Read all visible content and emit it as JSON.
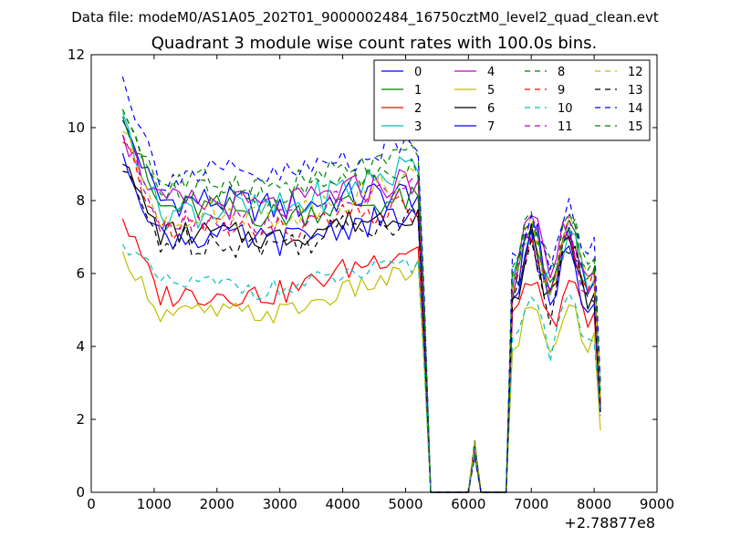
{
  "header": {
    "data_file": "Data file: modeM0/AS1A05_202T01_9000002484_16750cztM0_level2_quad_clean.evt"
  },
  "chart_data": {
    "type": "line",
    "title": "Quadrant 3 module wise count rates with 100.0s bins.",
    "xlabel": "",
    "ylabel": "",
    "x_offset_label": "+2.78877e8",
    "xlim": [
      0,
      9000
    ],
    "ylim": [
      0,
      12
    ],
    "x_ticks": [
      0,
      1000,
      2000,
      3000,
      4000,
      5000,
      6000,
      7000,
      8000,
      9000
    ],
    "y_ticks": [
      0,
      2,
      4,
      6,
      8,
      10,
      12
    ],
    "legend_position": "top-right",
    "x": [
      500,
      600,
      700,
      800,
      900,
      1000,
      1100,
      1200,
      1300,
      1400,
      1500,
      1600,
      1700,
      1800,
      1900,
      2000,
      2100,
      2200,
      2300,
      2400,
      2500,
      2600,
      2700,
      2800,
      2900,
      3000,
      3100,
      3200,
      3300,
      3400,
      3500,
      3600,
      3700,
      3800,
      3900,
      4000,
      4100,
      4200,
      4300,
      4400,
      4500,
      4600,
      4700,
      4800,
      4900,
      5000,
      5100,
      5200,
      5300,
      5400,
      5500,
      5600,
      5700,
      5800,
      5900,
      6000,
      6100,
      6200,
      6300,
      6400,
      6500,
      6600,
      6700,
      6800,
      6900,
      7000,
      7100,
      7200,
      7300,
      7400,
      7500,
      7600,
      7700,
      7800,
      7900,
      8000,
      8100
    ],
    "series": [
      {
        "name": "0",
        "color": "#0000ff",
        "dash": "solid",
        "base": 8.0,
        "peak": 10.2,
        "end": 8.2,
        "jitter": 0.45,
        "burst_high": 7.3,
        "burst_low": 5.6,
        "final": 2.3
      },
      {
        "name": "1",
        "color": "#008000",
        "dash": "solid",
        "base": 7.8,
        "peak": 10.3,
        "end": 8.0,
        "jitter": 0.4,
        "burst_high": 7.2,
        "burst_low": 5.5,
        "final": 2.4
      },
      {
        "name": "2",
        "color": "#ff0000",
        "dash": "solid",
        "base": 5.4,
        "peak": 7.5,
        "end": 6.8,
        "jitter": 0.35,
        "burst_high": 5.8,
        "burst_low": 4.6,
        "final": 2.2
      },
      {
        "name": "3",
        "color": "#00bfbf",
        "dash": "solid",
        "base": 7.7,
        "peak": 10.4,
        "end": 9.0,
        "jitter": 0.5,
        "burst_high": 7.1,
        "burst_low": 5.8,
        "final": 2.5
      },
      {
        "name": "4",
        "color": "#bf00bf",
        "dash": "solid",
        "base": 7.9,
        "peak": 9.8,
        "end": 8.6,
        "jitter": 0.45,
        "burst_high": 7.4,
        "burst_low": 5.9,
        "final": 2.6
      },
      {
        "name": "5",
        "color": "#bfbf00",
        "dash": "solid",
        "base": 4.9,
        "peak": 6.6,
        "end": 6.1,
        "jitter": 0.3,
        "burst_high": 5.1,
        "burst_low": 4.0,
        "final": 1.7
      },
      {
        "name": "6",
        "color": "#000000",
        "dash": "solid",
        "base": 7.1,
        "peak": 9.0,
        "end": 7.7,
        "jitter": 0.35,
        "burst_high": 7.0,
        "burst_low": 5.2,
        "final": 2.2
      },
      {
        "name": "7",
        "color": "#0000ff",
        "dash": "solid",
        "base": 7.0,
        "peak": 9.3,
        "end": 7.6,
        "jitter": 0.4,
        "burst_high": 6.9,
        "burst_low": 5.1,
        "final": 2.3
      },
      {
        "name": "8",
        "color": "#008000",
        "dash": "dashed",
        "base": 8.5,
        "peak": 10.5,
        "end": 9.2,
        "jitter": 0.4,
        "burst_high": 7.6,
        "burst_low": 6.0,
        "final": 2.8
      },
      {
        "name": "9",
        "color": "#ff0000",
        "dash": "dashed",
        "base": 7.3,
        "peak": 9.6,
        "end": 7.8,
        "jitter": 0.4,
        "burst_high": 7.0,
        "burst_low": 5.3,
        "final": 2.4
      },
      {
        "name": "10",
        "color": "#00bfbf",
        "dash": "dashed",
        "base": 5.7,
        "peak": 6.8,
        "end": 6.2,
        "jitter": 0.3,
        "burst_high": 5.6,
        "burst_low": 3.9,
        "final": 2.1
      },
      {
        "name": "11",
        "color": "#bf00bf",
        "dash": "dashed",
        "base": 7.5,
        "peak": 9.8,
        "end": 8.4,
        "jitter": 0.4,
        "burst_high": 7.2,
        "burst_low": 5.5,
        "final": 2.5
      },
      {
        "name": "12",
        "color": "#bfbf00",
        "dash": "dashed",
        "base": 7.6,
        "peak": 9.9,
        "end": 8.6,
        "jitter": 0.4,
        "burst_high": 7.3,
        "burst_low": 5.6,
        "final": 2.6
      },
      {
        "name": "13",
        "color": "#000000",
        "dash": "dashed",
        "base": 6.9,
        "peak": 8.8,
        "end": 7.6,
        "jitter": 0.45,
        "burst_high": 6.9,
        "burst_low": 5.0,
        "final": 2.2
      },
      {
        "name": "14",
        "color": "#0000ff",
        "dash": "dashed",
        "base": 8.7,
        "peak": 11.4,
        "end": 9.6,
        "jitter": 0.45,
        "burst_high": 7.8,
        "burst_low": 6.2,
        "final": 3.0
      },
      {
        "name": "15",
        "color": "#008000",
        "dash": "dashed",
        "base": 8.2,
        "peak": 10.5,
        "end": 9.0,
        "jitter": 0.4,
        "burst_high": 7.5,
        "burst_low": 5.8,
        "final": 2.7
      }
    ]
  }
}
